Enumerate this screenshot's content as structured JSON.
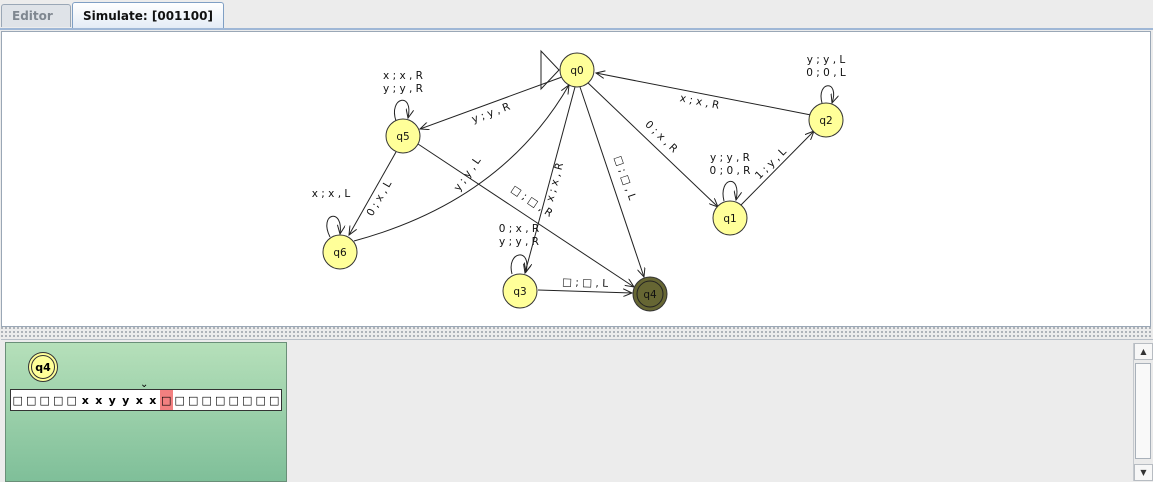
{
  "tabs": [
    {
      "label": "Editor",
      "active": false
    },
    {
      "label": "Simulate: [001100]",
      "active": true
    }
  ],
  "diagram": {
    "states": {
      "q0": "q0",
      "q1": "q1",
      "q2": "q2",
      "q3": "q3",
      "q4": "q4",
      "q5": "q5",
      "q6": "q6"
    },
    "transitions": {
      "q5_loop_1": "x ; x , R",
      "q5_loop_2": "y ; y , R",
      "q2_loop_1": "y ; y , L",
      "q2_loop_2": "0 ; 0 , L",
      "q1_loop_1": "y ; y , R",
      "q1_loop_2": "0 ; 0 , R",
      "q6_loop": "x ; x , L",
      "q3_loop_1": "0 ; x , R",
      "q3_loop_2": "y ; y , R",
      "q0_q5": "y ; y , R",
      "q2_q0": "x ; x , R",
      "q0_q1": "0 ; x , R",
      "q1_q2": "1 ; y , L",
      "q5_q6": "0 ; x , L",
      "q6_q0": "y ; y , L",
      "q5_q4": "□ ; □ , R",
      "q0_q3": "x ; x , R",
      "q0_q4": "□ ; □ , L",
      "q3_q4": "□ ; □ , L"
    },
    "colors": {
      "state_fill": "#ffff99",
      "final_fill": "#666633",
      "head_cell": "#f28080"
    }
  },
  "simulation": {
    "current_state": "q4",
    "tape": [
      "□",
      "□",
      "□",
      "□",
      "□",
      "x",
      "x",
      "y",
      "y",
      "x",
      "x",
      "□",
      "□",
      "□",
      "□",
      "□",
      "□",
      "□",
      "□",
      "□"
    ],
    "head_index": 11,
    "head_marker": "⌄"
  },
  "scrollbar": {
    "up_icon": "▲",
    "down_icon": "▼"
  }
}
